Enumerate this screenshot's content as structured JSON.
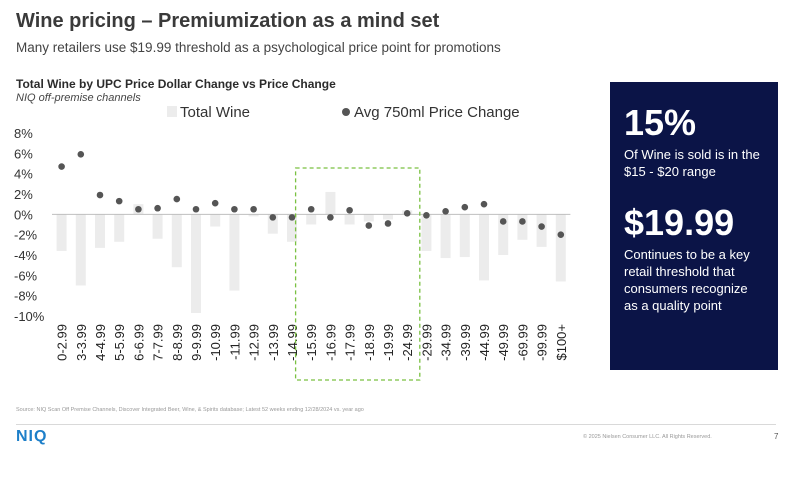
{
  "slide": {
    "title": "Wine pricing – Premiumization as a mind set",
    "subtitle": "Many retailers use $19.99 threshold as a psychological price point for promotions",
    "source": "Source: NIQ Scan Off Premise Channels, Discover Integrated Beer, Wine, & Spirits database; Latest 52 weeks ending 12/28/2024 vs. year ago",
    "logo": "NIQ",
    "copyright": "© 2025 Nielsen Consumer LLC. All Rights Reserved.",
    "page_number": "7"
  },
  "callout": {
    "stat1": "15%",
    "desc1": "Of Wine is sold is in the $15 - $20 range",
    "stat2": "$19.99",
    "desc2": "Continues to be a key retail threshold that consumers recognize as a quality point"
  },
  "colors": {
    "bar": "#ececec",
    "dot": "#555555",
    "highlight_box": "#7ac142",
    "callout_bg": "#0b1447",
    "logo": "#1d7fc9"
  },
  "chart_data": {
    "type": "bar",
    "title": "Total Wine by UPC Price Dollar Change vs Price Change",
    "subtitle": "NIQ off-premise channels",
    "xlabel": "",
    "ylabel": "",
    "ylim": [
      -10,
      8
    ],
    "yticks": [
      8,
      6,
      4,
      2,
      0,
      -2,
      -4,
      -6,
      -8,
      -10
    ],
    "ytick_labels": [
      "8%",
      "6%",
      "4%",
      "2%",
      "0%",
      "-2%",
      "-4%",
      "-6%",
      "-8%",
      "-10%"
    ],
    "legend_position": "top",
    "highlight_range": [
      "-15.99",
      "-24.99"
    ],
    "categories": [
      "0-2.99",
      "3-3.99",
      "4-4.99",
      "5-5.99",
      "6-6.99",
      "7-7.99",
      "8-8.99",
      "9-9.99",
      "-10.99",
      "-11.99",
      "-12.99",
      "-13.99",
      "-14.99",
      "-15.99",
      "-16.99",
      "-17.99",
      "-18.99",
      "-19.99",
      "-24.99",
      "-29.99",
      "-34.99",
      "-39.99",
      "-44.99",
      "-49.99",
      "-69.99",
      "-99.99",
      "$100+"
    ],
    "series": [
      {
        "name": "Total Wine",
        "type": "bar",
        "values": [
          -3.6,
          -7.0,
          -3.3,
          -2.7,
          1.0,
          -2.4,
          -5.2,
          -9.7,
          -1.2,
          -7.5,
          -0.2,
          -1.9,
          -2.7,
          -1.0,
          2.2,
          -1.0,
          -0.7,
          -0.5,
          0.4,
          -3.6,
          -4.3,
          -4.2,
          -6.5,
          -4.0,
          -2.5,
          -3.2,
          -6.6
        ]
      },
      {
        "name": "Avg 750ml Price Change",
        "type": "scatter",
        "values": [
          4.7,
          5.9,
          1.9,
          1.3,
          0.5,
          0.6,
          1.5,
          0.5,
          1.1,
          0.5,
          0.5,
          -0.3,
          -0.3,
          0.5,
          -0.3,
          0.4,
          -1.1,
          -0.9,
          0.1,
          -0.1,
          0.3,
          0.7,
          1.0,
          -0.7,
          -0.7,
          -1.2,
          -2.0
        ]
      }
    ]
  }
}
